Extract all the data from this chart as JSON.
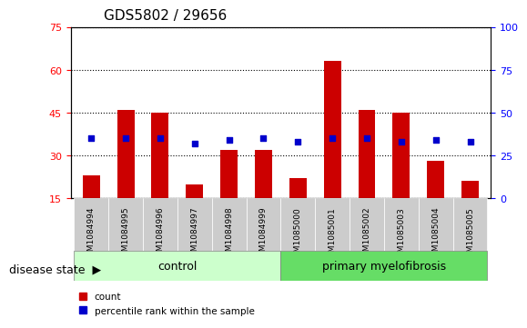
{
  "title": "GDS5802 / 29656",
  "samples": [
    "GSM1084994",
    "GSM1084995",
    "GSM1084996",
    "GSM1084997",
    "GSM1084998",
    "GSM1084999",
    "GSM1085000",
    "GSM1085001",
    "GSM1085002",
    "GSM1085003",
    "GSM1085004",
    "GSM1085005"
  ],
  "counts": [
    23,
    46,
    45,
    20,
    32,
    32,
    22,
    63,
    46,
    45,
    28,
    21
  ],
  "percentile_ranks": [
    35,
    35,
    35,
    32,
    34,
    35,
    33,
    35,
    35,
    33,
    34,
    33
  ],
  "ylim_left": [
    15,
    75
  ],
  "yticks_left": [
    15,
    30,
    45,
    60,
    75
  ],
  "ylim_right": [
    0,
    100
  ],
  "yticks_right": [
    0,
    25,
    50,
    75,
    100
  ],
  "bar_color": "#cc0000",
  "marker_color": "#0000cc",
  "bar_bottom": 15,
  "control_group": [
    0,
    1,
    2,
    3,
    4,
    5
  ],
  "myelofibrosis_group": [
    6,
    7,
    8,
    9,
    10,
    11
  ],
  "control_label": "control",
  "disease_label": "primary myelofibrosis",
  "disease_state_label": "disease state",
  "group_bg_light": "#ccffcc",
  "group_bg_dark": "#66dd66",
  "tick_bg": "#cccccc",
  "legend_count_label": "count",
  "legend_pct_label": "percentile rank within the sample",
  "title_fontsize": 11,
  "tick_fontsize": 8,
  "label_fontsize": 9
}
